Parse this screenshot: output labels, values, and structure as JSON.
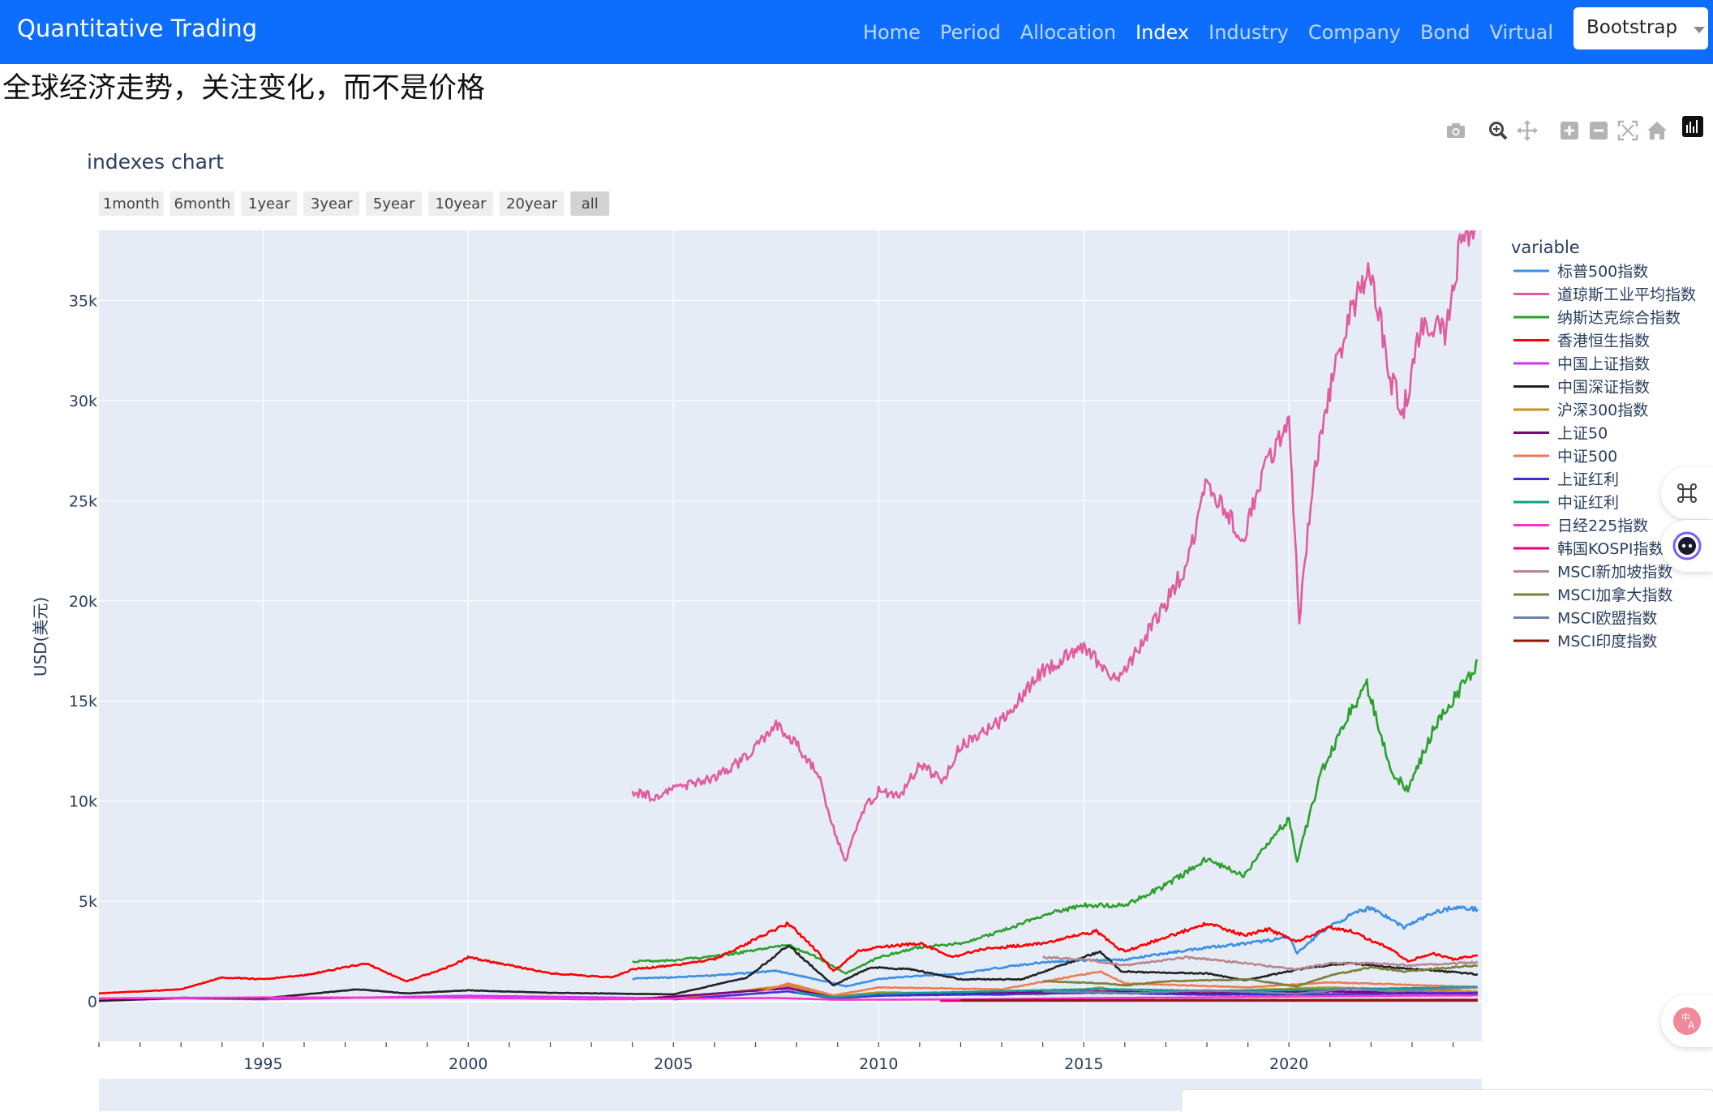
{
  "navbar": {
    "brand": "Quantitative Trading",
    "links": [
      "Home",
      "Period",
      "Allocation",
      "Index",
      "Industry",
      "Company",
      "Bond",
      "Virtual"
    ],
    "active": "Index",
    "theme_select_value": "Bootstrap"
  },
  "heading": "全球经济走势，关注变化，而不是价格",
  "modebar": {
    "icons": [
      "camera-icon",
      "zoom-icon",
      "pan-icon",
      "zoom-in-icon",
      "zoom-out-icon",
      "autoscale-icon",
      "reset-axes-icon"
    ]
  },
  "chart_data": {
    "type": "line",
    "title": "indexes chart",
    "ylabel": "USD(美元)",
    "xlabel": "",
    "xlim": [
      1991.0,
      2024.7
    ],
    "ylim": [
      -2000,
      38500
    ],
    "x_ticks": [
      1995,
      2000,
      2005,
      2010,
      2015,
      2020
    ],
    "y_ticks": [
      0,
      5000,
      10000,
      15000,
      20000,
      25000,
      30000,
      35000
    ],
    "y_tick_labels": [
      "0",
      "5k",
      "10k",
      "15k",
      "20k",
      "25k",
      "30k",
      "35k"
    ],
    "rangeselector": [
      "1month",
      "6month",
      "1year",
      "3year",
      "5year",
      "10year",
      "20year",
      "all"
    ],
    "rangeselector_active": "all",
    "legend_title": "variable",
    "legend_position": "right",
    "grid": true,
    "background": "#e5ecf6",
    "series": [
      {
        "name": "标普500指数",
        "color": "#3b8fe5",
        "points": [
          [
            2004.0,
            1130
          ],
          [
            2005.0,
            1200
          ],
          [
            2006.0,
            1300
          ],
          [
            2007.5,
            1520
          ],
          [
            2008.5,
            1100
          ],
          [
            2009.2,
            750
          ],
          [
            2010.0,
            1120
          ],
          [
            2011.0,
            1280
          ],
          [
            2012.0,
            1380
          ],
          [
            2013.0,
            1700
          ],
          [
            2014.0,
            1950
          ],
          [
            2015.0,
            2050
          ],
          [
            2016.0,
            2080
          ],
          [
            2017.0,
            2400
          ],
          [
            2018.0,
            2700
          ],
          [
            2019.0,
            2900
          ],
          [
            2020.0,
            3200
          ],
          [
            2020.2,
            2400
          ],
          [
            2020.8,
            3500
          ],
          [
            2021.5,
            4300
          ],
          [
            2022.0,
            4700
          ],
          [
            2022.8,
            3700
          ],
          [
            2023.5,
            4400
          ],
          [
            2024.0,
            4700
          ],
          [
            2024.6,
            4600
          ]
        ]
      },
      {
        "name": "道琼斯工业平均指数",
        "color": "#e05c9e",
        "points": [
          [
            2004.0,
            10500
          ],
          [
            2004.5,
            10200
          ],
          [
            2005.0,
            10600
          ],
          [
            2006.0,
            11200
          ],
          [
            2006.8,
            12200
          ],
          [
            2007.5,
            13800
          ],
          [
            2008.0,
            12800
          ],
          [
            2008.5,
            11500
          ],
          [
            2008.9,
            8600
          ],
          [
            2009.2,
            7000
          ],
          [
            2009.6,
            9500
          ],
          [
            2010.0,
            10500
          ],
          [
            2010.5,
            10200
          ],
          [
            2011.0,
            11800
          ],
          [
            2011.6,
            11000
          ],
          [
            2012.0,
            12800
          ],
          [
            2013.0,
            14000
          ],
          [
            2014.0,
            16500
          ],
          [
            2015.0,
            17800
          ],
          [
            2015.7,
            16000
          ],
          [
            2016.0,
            16500
          ],
          [
            2016.9,
            19500
          ],
          [
            2017.5,
            21800
          ],
          [
            2018.0,
            25800
          ],
          [
            2018.9,
            23000
          ],
          [
            2019.3,
            26000
          ],
          [
            2020.0,
            29000
          ],
          [
            2020.25,
            19000
          ],
          [
            2020.6,
            26500
          ],
          [
            2021.0,
            30500
          ],
          [
            2021.5,
            34500
          ],
          [
            2022.0,
            36400
          ],
          [
            2022.5,
            31000
          ],
          [
            2022.8,
            29500
          ],
          [
            2023.2,
            33500
          ],
          [
            2023.8,
            33500
          ],
          [
            2024.2,
            38000
          ],
          [
            2024.6,
            39000
          ]
        ]
      },
      {
        "name": "纳斯达克综合指数",
        "color": "#2ca02c",
        "points": [
          [
            2004.0,
            2000
          ],
          [
            2005.0,
            2050
          ],
          [
            2006.0,
            2250
          ],
          [
            2007.8,
            2800
          ],
          [
            2008.4,
            2300
          ],
          [
            2009.2,
            1400
          ],
          [
            2010.0,
            2200
          ],
          [
            2011.0,
            2700
          ],
          [
            2012.0,
            2900
          ],
          [
            2013.0,
            3500
          ],
          [
            2014.0,
            4300
          ],
          [
            2015.0,
            4800
          ],
          [
            2016.0,
            4800
          ],
          [
            2017.0,
            5800
          ],
          [
            2018.0,
            7100
          ],
          [
            2018.9,
            6300
          ],
          [
            2019.5,
            8000
          ],
          [
            2020.0,
            9100
          ],
          [
            2020.2,
            7000
          ],
          [
            2020.8,
            11500
          ],
          [
            2021.5,
            14500
          ],
          [
            2021.9,
            15800
          ],
          [
            2022.5,
            11500
          ],
          [
            2022.9,
            10500
          ],
          [
            2023.5,
            13500
          ],
          [
            2024.0,
            15000
          ],
          [
            2024.6,
            17000
          ]
        ]
      },
      {
        "name": "香港恒生指数",
        "color": "#ff0000",
        "points": [
          [
            1991.0,
            400
          ],
          [
            1993.0,
            600
          ],
          [
            1994.0,
            1200
          ],
          [
            1995.0,
            1100
          ],
          [
            1996.0,
            1300
          ],
          [
            1997.5,
            1900
          ],
          [
            1998.5,
            1000
          ],
          [
            1999.5,
            1700
          ],
          [
            2000.0,
            2200
          ],
          [
            2001.0,
            1800
          ],
          [
            2002.0,
            1400
          ],
          [
            2003.5,
            1200
          ],
          [
            2004.0,
            1600
          ],
          [
            2005.0,
            1800
          ],
          [
            2006.0,
            2100
          ],
          [
            2007.8,
            3900
          ],
          [
            2008.5,
            2500
          ],
          [
            2008.9,
            1500
          ],
          [
            2009.5,
            2500
          ],
          [
            2010.0,
            2700
          ],
          [
            2011.0,
            2900
          ],
          [
            2011.8,
            2200
          ],
          [
            2012.5,
            2600
          ],
          [
            2013.5,
            2800
          ],
          [
            2014.0,
            2900
          ],
          [
            2015.3,
            3500
          ],
          [
            2015.8,
            2700
          ],
          [
            2016.0,
            2500
          ],
          [
            2017.0,
            3200
          ],
          [
            2018.0,
            3900
          ],
          [
            2018.9,
            3300
          ],
          [
            2019.5,
            3600
          ],
          [
            2020.2,
            3000
          ],
          [
            2021.0,
            3700
          ],
          [
            2021.5,
            3500
          ],
          [
            2022.5,
            2600
          ],
          [
            2022.9,
            2000
          ],
          [
            2023.5,
            2400
          ],
          [
            2024.0,
            2100
          ],
          [
            2024.6,
            2300
          ]
        ]
      },
      {
        "name": "中国上证指数",
        "color": "#cc33ff",
        "points": [
          [
            1991.0,
            20
          ],
          [
            1993.0,
            150
          ],
          [
            1995.0,
            100
          ],
          [
            1997.0,
            170
          ],
          [
            2000.0,
            280
          ],
          [
            2002.0,
            230
          ],
          [
            2005.0,
            150
          ],
          [
            2007.8,
            750
          ],
          [
            2008.9,
            250
          ],
          [
            2010.0,
            420
          ],
          [
            2013.0,
            320
          ],
          [
            2015.4,
            650
          ],
          [
            2016.0,
            420
          ],
          [
            2018.0,
            400
          ],
          [
            2020.0,
            450
          ],
          [
            2021.0,
            500
          ],
          [
            2024.6,
            430
          ]
        ]
      },
      {
        "name": "中国深证指数",
        "color": "#222222",
        "points": [
          [
            1991.0,
            30
          ],
          [
            1993.0,
            180
          ],
          [
            1995.0,
            150
          ],
          [
            1997.3,
            600
          ],
          [
            1998.5,
            400
          ],
          [
            2000.0,
            550
          ],
          [
            2002.0,
            430
          ],
          [
            2005.0,
            350
          ],
          [
            2006.8,
            1200
          ],
          [
            2007.8,
            2800
          ],
          [
            2008.9,
            800
          ],
          [
            2009.8,
            1700
          ],
          [
            2010.8,
            1600
          ],
          [
            2012.0,
            1100
          ],
          [
            2013.5,
            1100
          ],
          [
            2015.4,
            2500
          ],
          [
            2015.9,
            1500
          ],
          [
            2016.5,
            1450
          ],
          [
            2018.0,
            1400
          ],
          [
            2018.9,
            1050
          ],
          [
            2020.0,
            1500
          ],
          [
            2020.5,
            1700
          ],
          [
            2021.5,
            1900
          ],
          [
            2022.5,
            1700
          ],
          [
            2023.5,
            1550
          ],
          [
            2024.6,
            1350
          ]
        ]
      },
      {
        "name": "沪深300指数",
        "color": "#c7921e",
        "points": [
          [
            2005.0,
            120
          ],
          [
            2007.8,
            800
          ],
          [
            2008.9,
            250
          ],
          [
            2010.0,
            450
          ],
          [
            2014.0,
            350
          ],
          [
            2015.4,
            700
          ],
          [
            2016.0,
            450
          ],
          [
            2018.0,
            500
          ],
          [
            2021.0,
            700
          ],
          [
            2024.6,
            500
          ]
        ]
      },
      {
        "name": "上证50",
        "color": "#7f007f",
        "points": [
          [
            2004.0,
            100
          ],
          [
            2007.8,
            650
          ],
          [
            2008.9,
            200
          ],
          [
            2010.0,
            350
          ],
          [
            2015.4,
            500
          ],
          [
            2018.0,
            400
          ],
          [
            2021.0,
            500
          ],
          [
            2024.6,
            360
          ]
        ]
      },
      {
        "name": "中证500",
        "color": "#f07b50",
        "points": [
          [
            2007.0,
            400
          ],
          [
            2007.8,
            900
          ],
          [
            2008.9,
            300
          ],
          [
            2010.0,
            700
          ],
          [
            2013.0,
            600
          ],
          [
            2015.4,
            1500
          ],
          [
            2016.0,
            900
          ],
          [
            2019.0,
            700
          ],
          [
            2021.0,
            950
          ],
          [
            2024.6,
            720
          ]
        ]
      },
      {
        "name": "上证红利",
        "color": "#3b2fd6",
        "points": [
          [
            2005.0,
            100
          ],
          [
            2007.8,
            500
          ],
          [
            2008.9,
            150
          ],
          [
            2010.0,
            280
          ],
          [
            2015.4,
            430
          ],
          [
            2018.0,
            330
          ],
          [
            2021.0,
            360
          ],
          [
            2024.6,
            420
          ]
        ]
      },
      {
        "name": "中证红利",
        "color": "#119d8f",
        "points": [
          [
            2008.0,
            450
          ],
          [
            2008.9,
            200
          ],
          [
            2010.0,
            380
          ],
          [
            2015.4,
            620
          ],
          [
            2018.0,
            520
          ],
          [
            2021.0,
            600
          ],
          [
            2024.6,
            720
          ]
        ]
      },
      {
        "name": "日经225指数",
        "color": "#ff33cc",
        "points": [
          [
            1991.0,
            150
          ],
          [
            1995.0,
            200
          ],
          [
            2000.0,
            180
          ],
          [
            2003.0,
            100
          ],
          [
            2007.5,
            170
          ],
          [
            2009.0,
            80
          ],
          [
            2012.0,
            100
          ],
          [
            2015.5,
            170
          ],
          [
            2018.0,
            200
          ],
          [
            2021.0,
            260
          ],
          [
            2024.6,
            300
          ]
        ]
      },
      {
        "name": "韩国KOSPI指数",
        "color": "#e6007e",
        "points": [
          [
            2011.5,
            25
          ],
          [
            2024.6,
            25
          ]
        ]
      },
      {
        "name": "MSCI新加坡指数",
        "color": "#b8868f",
        "points": [
          [
            2014.0,
            2200
          ],
          [
            2015.0,
            2100
          ],
          [
            2016.0,
            1800
          ],
          [
            2017.5,
            2200
          ],
          [
            2018.5,
            2000
          ],
          [
            2020.2,
            1600
          ],
          [
            2021.0,
            1900
          ],
          [
            2022.0,
            1900
          ],
          [
            2023.0,
            1800
          ],
          [
            2024.6,
            1950
          ]
        ]
      },
      {
        "name": "MSCI加拿大指数",
        "color": "#7a8035",
        "points": [
          [
            2014.0,
            1000
          ],
          [
            2015.5,
            900
          ],
          [
            2016.0,
            800
          ],
          [
            2017.0,
            1000
          ],
          [
            2018.0,
            1050
          ],
          [
            2019.0,
            1100
          ],
          [
            2020.2,
            750
          ],
          [
            2021.0,
            1300
          ],
          [
            2022.0,
            1700
          ],
          [
            2022.8,
            1500
          ],
          [
            2024.6,
            1800
          ]
        ]
      },
      {
        "name": "MSCI欧盟指数",
        "color": "#6b84a8",
        "points": [
          [
            2014.0,
            500
          ],
          [
            2015.5,
            450
          ],
          [
            2016.0,
            400
          ],
          [
            2018.0,
            550
          ],
          [
            2020.2,
            380
          ],
          [
            2021.5,
            650
          ],
          [
            2022.5,
            500
          ],
          [
            2024.6,
            700
          ]
        ]
      },
      {
        "name": "MSCI印度指数",
        "color": "#8b1a0a",
        "points": [
          [
            2012.0,
            60
          ],
          [
            2024.6,
            80
          ]
        ]
      }
    ]
  }
}
